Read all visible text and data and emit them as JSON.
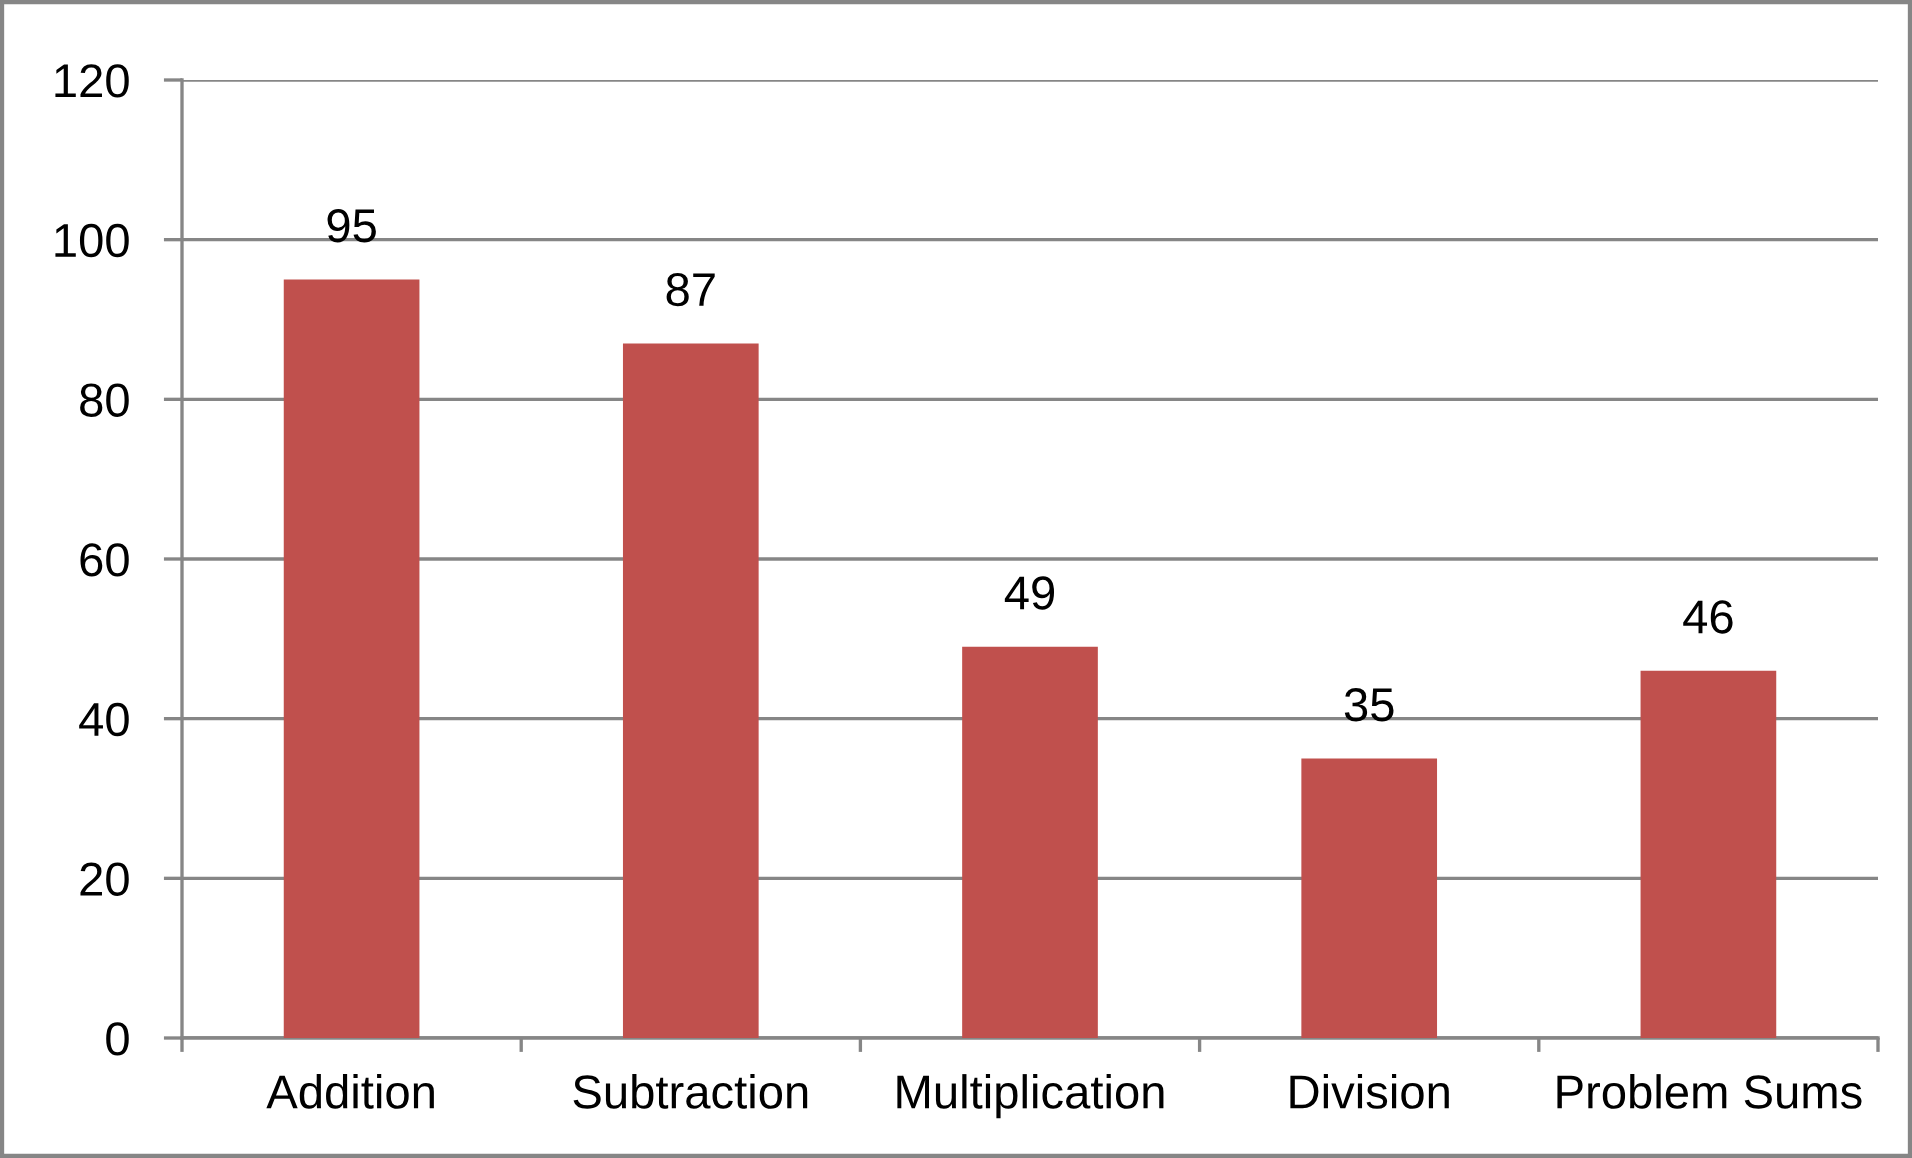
{
  "chart_data": {
    "type": "bar",
    "categories": [
      "Addition",
      "Subtraction",
      "Multiplication",
      "Division",
      "Problem Sums"
    ],
    "values": [
      95,
      87,
      49,
      35,
      46
    ],
    "color": "#c0504d",
    "ylim": [
      0,
      120
    ],
    "yticks": [
      0,
      20,
      40,
      60,
      80,
      100,
      120
    ],
    "grid": "y",
    "data_labels": true
  }
}
